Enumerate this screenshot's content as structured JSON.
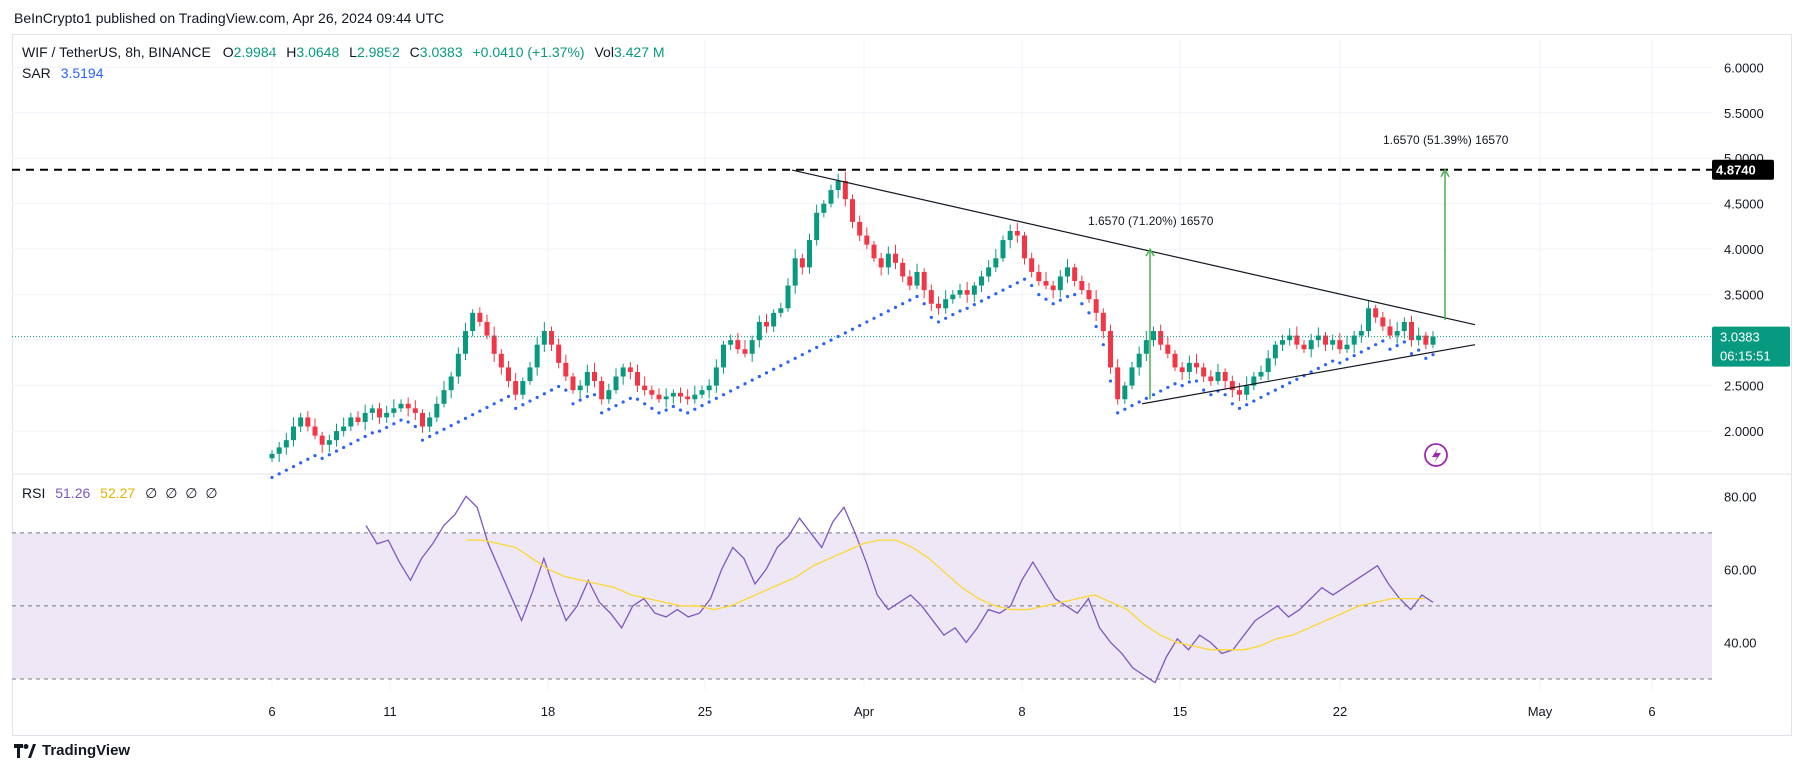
{
  "header": {
    "published": "BeInCrypto1 published on TradingView.com, Apr 26, 2024 09:44 UTC"
  },
  "legend": {
    "symbol": "WIF / TetherUS, 8h, BINANCE",
    "o_label": "O",
    "o": "2.9984",
    "h_label": "H",
    "h": "3.0648",
    "l_label": "L",
    "l": "2.9852",
    "c_label": "C",
    "c": "3.0383",
    "change": "+0.0410 (+1.37%)",
    "vol_label": "Vol",
    "vol": "3.427 M",
    "sar_label": "SAR",
    "sar": "3.5194"
  },
  "rsi_legend": {
    "label": "RSI",
    "rsi": "51.26",
    "ma": "52.27",
    "extra": [
      "∅",
      "∅",
      "∅",
      "∅"
    ]
  },
  "price_tags": {
    "resistance": "4.8740",
    "last": "3.0383",
    "countdown": "06:15:51"
  },
  "annotations": {
    "measure1": "1.6570 (71.20%) 16570",
    "measure2": "1.6570 (51.39%) 16570"
  },
  "footer": {
    "brand": "TradingView"
  },
  "colors": {
    "up": "#089981",
    "down": "#f23645",
    "sar": "#2962ff",
    "rsi": "#7e57c2",
    "rsi_ma": "#fdd835",
    "rsi_band": "#ede7f6",
    "measure": "#4caf50",
    "lastprice": "#089981"
  },
  "chart_data": [
    {
      "type": "candlestick",
      "title": "WIF / TetherUS, 8h, BINANCE",
      "x_tick_labels": [
        "6",
        "11",
        "18",
        "25",
        "Apr",
        "8",
        "15",
        "22",
        "May",
        "6"
      ],
      "y_tick_labels": [
        "2.0000",
        "2.5000",
        "3.0000",
        "3.5000",
        "4.0000",
        "4.5000",
        "5.0000",
        "5.5000",
        "6.0000"
      ],
      "ylim": [
        1.55,
        6.3
      ],
      "closes": [
        1.75,
        1.82,
        1.9,
        2.05,
        2.15,
        2.05,
        1.95,
        1.85,
        1.9,
        2.0,
        2.05,
        2.15,
        2.1,
        2.2,
        2.25,
        2.15,
        2.2,
        2.25,
        2.3,
        2.25,
        2.2,
        2.05,
        2.15,
        2.3,
        2.45,
        2.6,
        2.85,
        3.1,
        3.3,
        3.2,
        3.05,
        2.85,
        2.7,
        2.55,
        2.4,
        2.55,
        2.7,
        2.95,
        3.1,
        2.95,
        2.75,
        2.6,
        2.45,
        2.5,
        2.65,
        2.55,
        2.35,
        2.45,
        2.6,
        2.7,
        2.65,
        2.5,
        2.45,
        2.4,
        2.35,
        2.38,
        2.42,
        2.38,
        2.35,
        2.4,
        2.45,
        2.5,
        2.7,
        2.95,
        3.0,
        2.9,
        2.85,
        3.0,
        3.2,
        3.15,
        3.3,
        3.35,
        3.6,
        3.9,
        3.8,
        4.1,
        4.4,
        4.5,
        4.65,
        4.75,
        4.55,
        4.3,
        4.15,
        4.05,
        3.9,
        3.8,
        3.95,
        3.85,
        3.7,
        3.6,
        3.75,
        3.55,
        3.4,
        3.35,
        3.45,
        3.5,
        3.55,
        3.5,
        3.6,
        3.7,
        3.8,
        3.9,
        4.1,
        4.2,
        4.15,
        3.9,
        3.75,
        3.65,
        3.6,
        3.55,
        3.7,
        3.8,
        3.65,
        3.55,
        3.45,
        3.3,
        3.1,
        2.7,
        2.35,
        2.5,
        2.7,
        2.85,
        3.0,
        3.1,
        2.95,
        2.85,
        2.7,
        2.65,
        2.75,
        2.7,
        2.6,
        2.55,
        2.65,
        2.55,
        2.45,
        2.4,
        2.5,
        2.6,
        2.65,
        2.8,
        2.95,
        3.0,
        3.05,
        2.95,
        2.9,
        3.0,
        3.05,
        2.95,
        3.0,
        2.9,
        2.95,
        3.05,
        3.1,
        3.35,
        3.25,
        3.15,
        3.05,
        3.1,
        3.2,
        3.0,
        3.05,
        2.95,
        3.04
      ],
      "resistance_level": 4.874,
      "last_price": 3.0383,
      "measures": [
        {
          "label": "1.6570 (71.20%) 16570",
          "from": 2.35,
          "to": 4.0
        },
        {
          "label": "1.6570 (51.39%) 16570",
          "from": 3.22,
          "to": 4.874
        }
      ]
    },
    {
      "type": "line",
      "title": "RSI",
      "y_tick_labels": [
        "40.00",
        "60.00",
        "80.00"
      ],
      "ylim": [
        27,
        85
      ],
      "bands": [
        30,
        50,
        70
      ],
      "rsi": [
        72,
        67,
        68,
        62,
        57,
        63,
        67,
        72,
        75,
        80,
        77,
        67,
        60,
        53,
        46,
        54,
        63,
        54,
        46,
        50,
        57,
        51,
        48,
        44,
        50,
        52,
        48,
        47,
        49,
        47,
        48,
        52,
        60,
        66,
        63,
        56,
        60,
        66,
        69,
        74,
        70,
        66,
        73,
        77,
        70,
        62,
        53,
        49,
        51,
        53,
        50,
        46,
        42,
        44,
        40,
        44,
        49,
        48,
        50,
        57,
        62,
        57,
        52,
        50,
        48,
        52,
        44,
        40,
        37,
        33,
        31,
        29,
        36,
        41,
        38,
        42,
        40,
        37,
        38,
        42,
        46,
        48,
        50,
        47,
        49,
        52,
        55,
        53,
        55,
        57,
        59,
        61,
        56,
        52,
        49,
        53,
        51
      ],
      "rsi_ma": [
        68,
        68,
        67,
        66,
        63,
        60,
        58,
        57,
        56,
        55,
        53,
        52,
        51,
        50,
        50,
        49,
        50,
        52,
        54,
        56,
        58,
        61,
        63,
        65,
        67,
        68,
        68,
        66,
        63,
        59,
        55,
        52,
        50,
        49,
        49,
        50,
        51,
        52,
        53,
        51,
        49,
        45,
        42,
        40,
        39,
        38,
        38,
        38,
        39,
        41,
        42,
        44,
        46,
        48,
        50,
        51,
        52,
        52,
        52
      ]
    }
  ]
}
